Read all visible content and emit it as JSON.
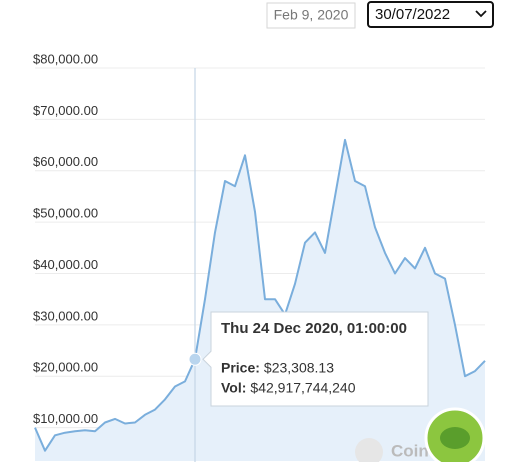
{
  "controls": {
    "start_date": "Feb 9, 2020",
    "end_date": "30/07/2022"
  },
  "chart_data": {
    "type": "line",
    "color": "#7aaedc",
    "area_color": "#e6f0fa",
    "grid": true,
    "values": [
      10000,
      5500,
      8500,
      9000,
      9300,
      9500,
      9300,
      11000,
      11700,
      10800,
      11000,
      12500,
      13500,
      15500,
      18000,
      19000,
      23308.13,
      35000,
      48000,
      58000,
      57000,
      63000,
      52000,
      35000,
      35000,
      32000,
      38000,
      46000,
      48000,
      44000,
      55000,
      66000,
      58000,
      57000,
      49000,
      44000,
      40000,
      43000,
      41000,
      45000,
      40000,
      39000,
      30000,
      20000,
      21000,
      23000
    ],
    "ylim": [
      3500,
      80000
    ],
    "yticks": [
      {
        "value": 10000,
        "label": "$10,000.00"
      },
      {
        "value": 20000,
        "label": "$20,000.00"
      },
      {
        "value": 30000,
        "label": "$30,000.00"
      },
      {
        "value": 40000,
        "label": "$40,000.00"
      },
      {
        "value": 50000,
        "label": "$50,000.00"
      },
      {
        "value": 60000,
        "label": "$60,000.00"
      },
      {
        "value": 70000,
        "label": "$70,000.00"
      },
      {
        "value": 80000,
        "label": "$80,000.00"
      }
    ],
    "tooltip": {
      "title": "Thu 24 Dec 2020, 01:00:00",
      "rows": [
        {
          "label": "Price:",
          "value": 23308.13,
          "value_label": "$23,308.13"
        },
        {
          "label": "Vol:",
          "value": 42917744240,
          "value_label": "$42,917,744,240"
        }
      ]
    },
    "watermark": "Coin"
  }
}
